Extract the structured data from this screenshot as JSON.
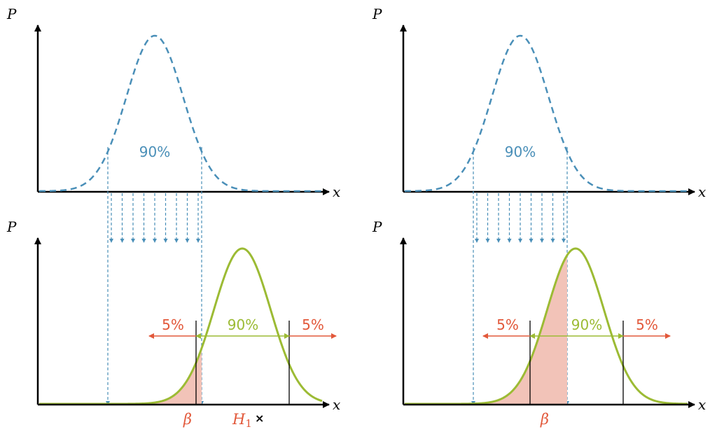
{
  "labels": {
    "p_axis": "P",
    "x_axis": "x",
    "beta": "β",
    "h1": "H",
    "h1_sub": "1",
    "h1_mark": "×"
  },
  "panels": [
    {
      "name": "left",
      "null_pct": "90%",
      "tail_left": "5%",
      "center": "90%",
      "tail_right": "5%",
      "show_h1": true
    },
    {
      "name": "right",
      "null_pct": "90%",
      "tail_left": "5%",
      "center": "90%",
      "tail_right": "5%",
      "show_h1": false
    }
  ],
  "colors": {
    "blue": "#4a8fb8",
    "green": "#9cbb34",
    "red": "#e2583a",
    "shade": "#f2c3b8",
    "axis": "#000000"
  }
}
